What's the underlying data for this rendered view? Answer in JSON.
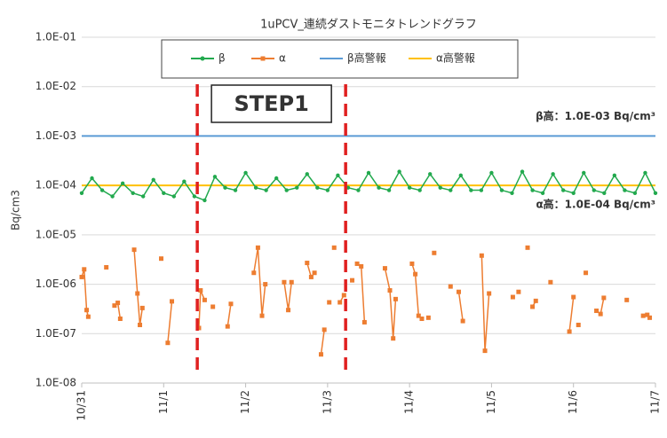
{
  "chart_data": {
    "type": "line",
    "title": "1uPCV_連続ダストモニタトレンドグラフ",
    "ylabel": "Bq/cm3",
    "log_y": true,
    "grid": true,
    "ylim": [
      1e-08,
      0.1
    ],
    "yticks": [
      {
        "value": 1e-08,
        "label": "1.0E-08"
      },
      {
        "value": 1e-07,
        "label": "1.0E-07"
      },
      {
        "value": 1e-06,
        "label": "1.0E-06"
      },
      {
        "value": 1e-05,
        "label": "1.0E-05"
      },
      {
        "value": 0.0001,
        "label": "1.0E-04"
      },
      {
        "value": 0.001,
        "label": "1.0E-03"
      },
      {
        "value": 0.01,
        "label": "1.0E-02"
      },
      {
        "value": 0.1,
        "label": "1.0E-01"
      }
    ],
    "xlim": [
      0,
      7
    ],
    "xticks": [
      {
        "value": 0,
        "label": "10/31"
      },
      {
        "value": 1,
        "label": "11/1"
      },
      {
        "value": 2,
        "label": "11/2"
      },
      {
        "value": 3,
        "label": "11/3"
      },
      {
        "value": 4,
        "label": "11/4"
      },
      {
        "value": 5,
        "label": "11/5"
      },
      {
        "value": 6,
        "label": "11/6"
      },
      {
        "value": 7,
        "label": "11/7"
      }
    ],
    "series": [
      {
        "name": "β",
        "color": "#22a94e",
        "marker": "circle",
        "x": [
          0,
          0.125,
          0.25,
          0.375,
          0.5,
          0.625,
          0.75,
          0.875,
          1,
          1.125,
          1.25,
          1.375,
          1.5,
          1.625,
          1.75,
          1.875,
          2,
          2.125,
          2.25,
          2.375,
          2.5,
          2.625,
          2.75,
          2.875,
          3,
          3.125,
          3.25,
          3.375,
          3.5,
          3.625,
          3.75,
          3.875,
          4,
          4.125,
          4.25,
          4.375,
          4.5,
          4.625,
          4.75,
          4.875,
          5,
          5.125,
          5.25,
          5.375,
          5.5,
          5.625,
          5.75,
          5.875,
          6,
          6.125,
          6.25,
          6.375,
          6.5,
          6.625,
          6.75,
          6.875,
          7
        ],
        "values": [
          7e-05,
          0.00014,
          8e-05,
          6e-05,
          0.00011,
          7e-05,
          6e-05,
          0.00013,
          7e-05,
          6e-05,
          0.00012,
          6e-05,
          5e-05,
          0.00015,
          9e-05,
          8e-05,
          0.00018,
          9e-05,
          8e-05,
          0.00014,
          8e-05,
          9e-05,
          0.00017,
          9e-05,
          8e-05,
          0.00016,
          9e-05,
          8e-05,
          0.00018,
          9e-05,
          8e-05,
          0.00019,
          9e-05,
          8e-05,
          0.00017,
          9e-05,
          8e-05,
          0.00016,
          8e-05,
          8e-05,
          0.00018,
          8e-05,
          7e-05,
          0.00019,
          8e-05,
          7e-05,
          0.00017,
          8e-05,
          7e-05,
          0.00018,
          8e-05,
          7e-05,
          0.00016,
          8e-05,
          7e-05,
          0.00018,
          7e-05
        ]
      },
      {
        "name": "α",
        "color": "#ed7d31",
        "marker": "square",
        "x": [
          0,
          0.03,
          0.06,
          0.08,
          null,
          0.3,
          null,
          0.4,
          0.44,
          0.47,
          null,
          0.64,
          0.68,
          0.71,
          0.74,
          null,
          0.97,
          null,
          1.05,
          1.1,
          null,
          1.43,
          1.45,
          1.5,
          null,
          1.6,
          null,
          1.78,
          1.82,
          null,
          2.1,
          2.15,
          2.2,
          2.24,
          null,
          2.47,
          2.52,
          2.56,
          null,
          2.75,
          2.8,
          2.84,
          null,
          2.92,
          2.96,
          null,
          3.02,
          null,
          3.08,
          null,
          3.15,
          3.2,
          null,
          3.3,
          null,
          3.36,
          3.41,
          3.45,
          null,
          3.7,
          3.76,
          3.8,
          3.83,
          null,
          4.03,
          4.07,
          4.11,
          4.15,
          null,
          4.23,
          null,
          4.3,
          null,
          4.5,
          null,
          4.6,
          4.65,
          null,
          4.88,
          4.92,
          4.97,
          null,
          5.26,
          null,
          5.33,
          null,
          5.44,
          null,
          5.5,
          5.54,
          null,
          5.72,
          null,
          5.95,
          6.0,
          null,
          6.06,
          null,
          6.15,
          null,
          6.28,
          6.33,
          6.37,
          null,
          6.65,
          null,
          6.85,
          6.9,
          6.93
        ],
        "values": [
          1.4e-06,
          2e-06,
          3e-07,
          2.2e-07,
          null,
          2.2e-06,
          null,
          3.7e-07,
          4.2e-07,
          2e-07,
          null,
          5e-06,
          6.5e-07,
          1.5e-07,
          3.3e-07,
          null,
          3.3e-06,
          null,
          6.5e-08,
          4.5e-07,
          null,
          1.3e-07,
          7.5e-07,
          4.8e-07,
          null,
          3.5e-07,
          null,
          1.4e-07,
          4e-07,
          null,
          1.7e-06,
          5.5e-06,
          2.3e-07,
          1e-06,
          null,
          1.1e-06,
          3e-07,
          1.1e-06,
          null,
          2.7e-06,
          1.4e-06,
          1.7e-06,
          null,
          3.8e-08,
          1.2e-07,
          null,
          4.3e-07,
          null,
          5.5e-06,
          null,
          4.3e-07,
          6e-07,
          null,
          1.2e-06,
          null,
          2.6e-06,
          2.3e-06,
          1.7e-07,
          null,
          2.1e-06,
          7.5e-07,
          8e-08,
          5e-07,
          null,
          2.6e-06,
          1.6e-06,
          2.3e-07,
          2e-07,
          null,
          2.1e-07,
          null,
          4.3e-06,
          null,
          9e-07,
          null,
          7e-07,
          1.8e-07,
          null,
          3.8e-06,
          4.5e-08,
          6.5e-07,
          null,
          5.5e-07,
          null,
          7e-07,
          null,
          5.5e-06,
          null,
          3.5e-07,
          4.6e-07,
          null,
          1.1e-06,
          null,
          1.1e-07,
          5.5e-07,
          null,
          1.5e-07,
          null,
          1.7e-06,
          null,
          2.9e-07,
          2.5e-07,
          5.3e-07,
          null,
          4.8e-07,
          null,
          2.3e-07,
          2.4e-07,
          2.1e-07
        ]
      }
    ],
    "thresholds": [
      {
        "name": "β高警報",
        "value": 0.001,
        "color": "#5b9bd5",
        "annotation": "β高：1.0E-03 Bq/cm³"
      },
      {
        "name": "α高警報",
        "value": 0.0001,
        "color": "#ffc000",
        "annotation": "α高：1.0E-04 Bq/cm³"
      }
    ],
    "markers": {
      "x": [
        1.41,
        3.22
      ],
      "color": "#e02020",
      "label": "STEP1"
    }
  }
}
